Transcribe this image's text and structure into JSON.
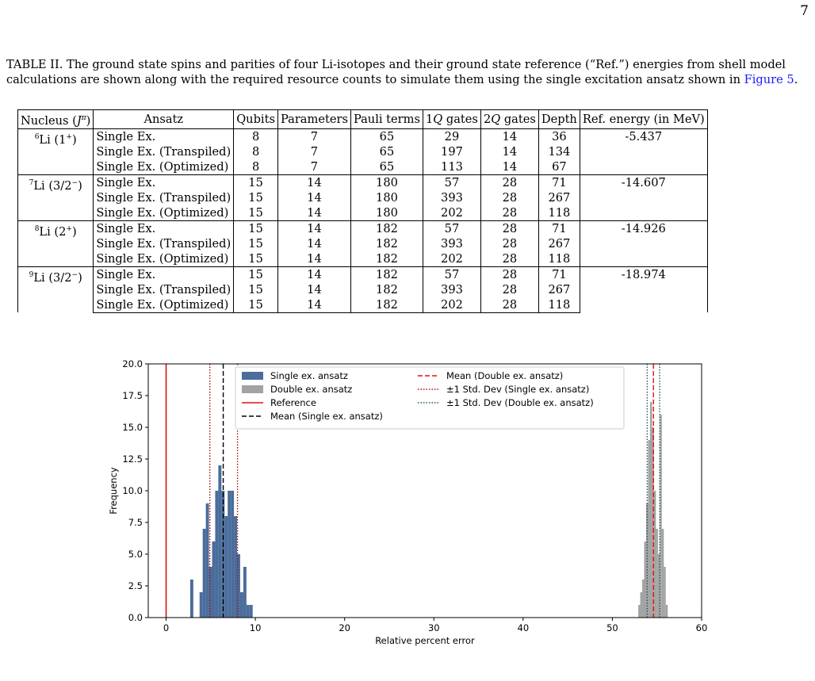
{
  "page_number": "7",
  "caption": {
    "text": "TABLE II. The ground state spins and parities of four Li-isotopes and their ground state reference (“Ref.”) energies from shell model calculations are shown along with the required resource counts to simulate them using the single excitation ansatz shown in ",
    "link": "Figure 5",
    "end": "."
  },
  "table": {
    "headers": [
      "Nucleus (J^π)",
      "Ansatz",
      "Qubits",
      "Parameters",
      "Pauli terms",
      "1Q gates",
      "2Q gates",
      "Depth",
      "Ref. energy (in MeV)"
    ],
    "groups": [
      {
        "nucleus": "6Li (1+)",
        "mass": "6",
        "label": "Li (1",
        "sup": "+",
        "close": ")",
        "ref": "-5.437",
        "rows": [
          [
            "Single Ex.",
            "8",
            "7",
            "65",
            "29",
            "14",
            "36"
          ],
          [
            "Single Ex. (Transpiled)",
            "8",
            "7",
            "65",
            "197",
            "14",
            "134"
          ],
          [
            "Single Ex. (Optimized)",
            "8",
            "7",
            "65",
            "113",
            "14",
            "67"
          ]
        ]
      },
      {
        "nucleus": "7Li (3/2−)",
        "mass": "7",
        "label": "Li (3/2",
        "sup": "−",
        "close": ")",
        "ref": "-14.607",
        "rows": [
          [
            "Single Ex.",
            "15",
            "14",
            "180",
            "57",
            "28",
            "71"
          ],
          [
            "Single Ex. (Transpiled)",
            "15",
            "14",
            "180",
            "393",
            "28",
            "267"
          ],
          [
            "Single Ex. (Optimized)",
            "15",
            "14",
            "180",
            "202",
            "28",
            "118"
          ]
        ]
      },
      {
        "nucleus": "8Li (2+)",
        "mass": "8",
        "label": "Li (2",
        "sup": "+",
        "close": ")",
        "ref": "-14.926",
        "rows": [
          [
            "Single Ex.",
            "15",
            "14",
            "182",
            "57",
            "28",
            "71"
          ],
          [
            "Single Ex. (Transpiled)",
            "15",
            "14",
            "182",
            "393",
            "28",
            "267"
          ],
          [
            "Single Ex. (Optimized)",
            "15",
            "14",
            "182",
            "202",
            "28",
            "118"
          ]
        ]
      },
      {
        "nucleus": "9Li (3/2−)",
        "mass": "9",
        "label": "Li (3/2",
        "sup": "−",
        "close": ")",
        "ref": "-18.974",
        "rows": [
          [
            "Single Ex.",
            "15",
            "14",
            "182",
            "57",
            "28",
            "71"
          ],
          [
            "Single Ex. (Transpiled)",
            "15",
            "14",
            "182",
            "393",
            "28",
            "267"
          ],
          [
            "Single Ex. (Optimized)",
            "15",
            "14",
            "182",
            "202",
            "28",
            "118"
          ]
        ]
      }
    ]
  },
  "chart_data": {
    "type": "bar",
    "xlabel": "Relative percent error",
    "ylabel": "Frequency",
    "xlim": [
      -2,
      60
    ],
    "ylim": [
      0,
      20
    ],
    "xticks": [
      0,
      10,
      20,
      30,
      40,
      50,
      60
    ],
    "yticks": [
      0.0,
      2.5,
      5.0,
      7.5,
      10.0,
      12.5,
      15.0,
      17.5,
      20.0
    ],
    "legend_position": "top",
    "series": [
      {
        "name": "Single ex. ansatz",
        "color": "#4a6d9c",
        "bin_width": 0.35,
        "x": [
          2.7,
          3.75,
          4.1,
          4.45,
          4.8,
          5.15,
          5.5,
          5.85,
          6.2,
          6.55,
          6.9,
          7.25,
          7.6,
          7.95,
          8.3,
          8.65,
          9.0,
          9.35
        ],
        "values": [
          3,
          2,
          7,
          9,
          4,
          6,
          10,
          12,
          10,
          8,
          10,
          10,
          8,
          5,
          2,
          4,
          1,
          1
        ]
      },
      {
        "name": "Double ex. ansatz",
        "color": "#a3a3a3",
        "bin_width": 0.22,
        "x": [
          52.9,
          53.12,
          53.34,
          53.56,
          53.78,
          54.0,
          54.22,
          54.44,
          54.66,
          54.88,
          55.1,
          55.32,
          55.54,
          55.76,
          55.98
        ],
        "values": [
          1,
          2,
          3,
          6,
          9,
          14,
          17,
          15,
          10,
          7,
          5,
          16,
          7,
          4,
          1
        ]
      }
    ],
    "lines": [
      {
        "name": "Reference",
        "x": 0,
        "color": "#e01010",
        "style": "solid"
      },
      {
        "name": "Mean (Single ex. ansatz)",
        "x": 6.4,
        "color": "#000000",
        "style": "dashed"
      },
      {
        "name": "Mean (Double ex. ansatz)",
        "x": 54.6,
        "color": "#e01010",
        "style": "dashed"
      },
      {
        "name": "±1 Std. Dev (Single ex. ansatz)",
        "x": [
          4.9,
          8.0
        ],
        "color": "#a01010",
        "style": "dotted"
      },
      {
        "name": "±1 Std. Dev (Double ex. ansatz)",
        "x": [
          53.9,
          55.3
        ],
        "color": "#2a5560",
        "style": "dotted"
      }
    ],
    "legend": [
      {
        "label": "Single ex. ansatz",
        "kind": "patch",
        "color": "#4a6d9c"
      },
      {
        "label": "Double ex. ansatz",
        "kind": "patch",
        "color": "#a3a3a3"
      },
      {
        "label": "Reference",
        "kind": "solid",
        "color": "#e01010"
      },
      {
        "label": "Mean (Single ex. ansatz)",
        "kind": "dashed",
        "color": "#000000"
      },
      {
        "label": "Mean (Double ex. ansatz)",
        "kind": "dashed",
        "color": "#e01010"
      },
      {
        "label": "±1 Std. Dev (Single ex. ansatz)",
        "kind": "dotted",
        "color": "#a01010"
      },
      {
        "label": "±1 Std. Dev (Double ex. ansatz)",
        "kind": "dotted",
        "color": "#2a5560"
      }
    ]
  }
}
